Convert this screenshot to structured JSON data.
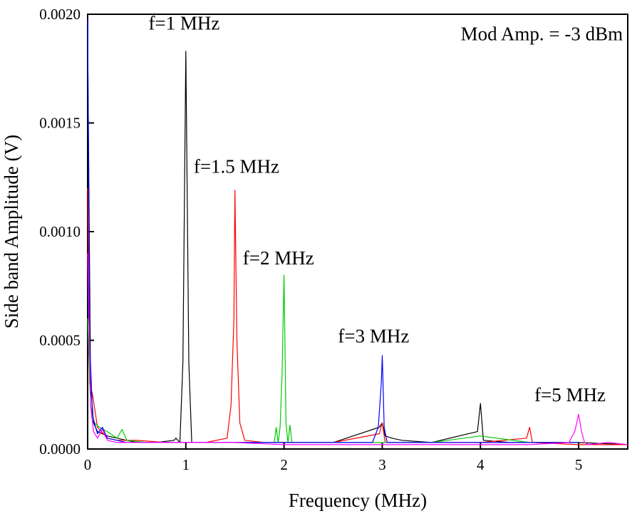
{
  "chart_data": {
    "type": "line",
    "title": "",
    "xlabel": "Frequency (MHz)",
    "ylabel": "Side band Amplitude (V)",
    "xlim": [
      0,
      5.5
    ],
    "ylim": [
      0,
      0.002
    ],
    "x_ticks": [
      0,
      1,
      2,
      3,
      4,
      5
    ],
    "x_tick_labels": [
      "0",
      "1",
      "2",
      "3",
      "4",
      "5"
    ],
    "y_ticks": [
      0,
      0.0005,
      0.001,
      0.0015,
      0.002
    ],
    "y_tick_labels": [
      "0.0000",
      "0.0005",
      "0.0010",
      "0.0015",
      "0.0020"
    ],
    "grid": false,
    "legend": "none",
    "annotations": [
      {
        "text": "Mod Amp. = -3 dBm",
        "x": 5.45,
        "y": 0.00188,
        "anchor": "end"
      },
      {
        "text": "f=1 MHz",
        "x": 0.62,
        "y": 0.00193,
        "anchor": "start"
      },
      {
        "text": "f=1.5 MHz",
        "x": 1.08,
        "y": 0.00127,
        "anchor": "start"
      },
      {
        "text": "f=2 MHz",
        "x": 1.58,
        "y": 0.00085,
        "anchor": "start"
      },
      {
        "text": "f=3 MHz",
        "x": 2.55,
        "y": 0.00049,
        "anchor": "start"
      },
      {
        "text": "f=5 MHz",
        "x": 4.55,
        "y": 0.00022,
        "anchor": "start"
      }
    ],
    "series": [
      {
        "name": "f=1 MHz",
        "color": "#000000",
        "x": [
          0,
          0.03,
          0.06,
          0.1,
          0.2,
          0.3,
          0.5,
          0.7,
          0.88,
          0.9,
          0.94,
          0.97,
          1.0,
          1.03,
          1.06,
          1.1,
          1.3,
          1.5,
          1.8,
          2.0,
          2.5,
          2.97,
          3.0,
          3.03,
          3.1,
          3.2,
          3.5,
          3.97,
          4.0,
          4.03,
          4.3,
          4.6,
          5.0,
          5.5
        ],
        "y": [
          0.0019,
          0.0003,
          0.00012,
          8e-05,
          6e-05,
          5e-05,
          3e-05,
          3e-05,
          4e-05,
          5e-05,
          3e-05,
          0.0004,
          0.00183,
          0.0004,
          3e-05,
          3e-05,
          3e-05,
          3e-05,
          3e-05,
          3e-05,
          3e-05,
          0.0001,
          0.00012,
          6e-05,
          5e-05,
          4e-05,
          3e-05,
          8e-05,
          0.00021,
          4e-05,
          3e-05,
          3e-05,
          3e-05,
          2e-05
        ]
      },
      {
        "name": "f=1.5 MHz",
        "color": "#ff0000",
        "x": [
          0,
          0.02,
          0.05,
          0.1,
          0.2,
          0.3,
          0.5,
          0.8,
          1.0,
          1.2,
          1.42,
          1.46,
          1.49,
          1.5,
          1.52,
          1.55,
          1.6,
          1.8,
          2.0,
          2.5,
          2.97,
          3.0,
          3.03,
          3.5,
          4.0,
          4.47,
          4.5,
          4.53,
          5.0,
          5.5
        ],
        "y": [
          0.0012,
          0.0003,
          0.00025,
          0.0001,
          5e-05,
          4e-05,
          4e-05,
          3e-05,
          3e-05,
          3e-05,
          5e-05,
          0.0002,
          0.0006,
          0.00119,
          0.0005,
          0.00012,
          4e-05,
          3e-05,
          3e-05,
          3e-05,
          7e-05,
          0.00012,
          3e-05,
          3e-05,
          3e-05,
          5e-05,
          0.0001,
          3e-05,
          2e-05,
          2e-05
        ]
      },
      {
        "name": "f=2 MHz",
        "color": "#00cc00",
        "x": [
          0,
          0.03,
          0.07,
          0.12,
          0.2,
          0.3,
          0.35,
          0.4,
          0.6,
          1.0,
          1.5,
          1.9,
          1.92,
          1.94,
          1.96,
          1.98,
          2.0,
          2.02,
          2.04,
          2.06,
          2.08,
          2.1,
          2.5,
          3.0,
          3.5,
          4.0,
          4.5,
          5.0
        ],
        "y": [
          0.0006,
          0.0002,
          0.00012,
          0.0001,
          8e-05,
          5e-05,
          9e-05,
          4e-05,
          3e-05,
          3e-05,
          3e-05,
          3e-05,
          0.0001,
          3e-05,
          0.0001,
          0.00035,
          0.0008,
          0.00012,
          3e-05,
          0.00011,
          3e-05,
          3e-05,
          3e-05,
          3e-05,
          3e-05,
          6e-05,
          3e-05,
          3e-05
        ]
      },
      {
        "name": "f=3 MHz",
        "color": "#0000ff",
        "x": [
          0,
          0.02,
          0.05,
          0.1,
          0.15,
          0.2,
          0.4,
          0.8,
          1.2,
          1.6,
          2.0,
          2.4,
          2.9,
          2.96,
          2.99,
          3.0,
          3.02,
          3.05,
          3.1,
          3.5,
          4.0,
          4.5,
          5.0
        ],
        "y": [
          0.00198,
          0.0005,
          0.00015,
          7e-05,
          0.0001,
          5e-05,
          3e-05,
          3e-05,
          3e-05,
          3e-05,
          3e-05,
          3e-05,
          3e-05,
          0.0001,
          0.0003,
          0.00043,
          0.0001,
          3e-05,
          3e-05,
          3e-05,
          3e-05,
          3e-05,
          3e-05
        ]
      },
      {
        "name": "f=5 MHz",
        "color": "#ff00ff",
        "x": [
          0,
          0.03,
          0.06,
          0.1,
          0.15,
          0.2,
          0.3,
          0.5,
          1.0,
          1.5,
          2.0,
          2.5,
          3.0,
          3.5,
          4.0,
          4.5,
          4.9,
          4.96,
          5.0,
          5.03,
          5.06,
          5.1,
          5.3,
          5.5
        ],
        "y": [
          0.0009,
          0.0002,
          8e-05,
          5e-05,
          9e-05,
          4e-05,
          3e-05,
          3e-05,
          3e-05,
          3e-05,
          2e-05,
          2e-05,
          2e-05,
          2e-05,
          2e-05,
          2e-05,
          3e-05,
          8e-05,
          0.00016,
          8e-05,
          3e-05,
          2e-05,
          3e-05,
          2e-05
        ]
      }
    ]
  }
}
